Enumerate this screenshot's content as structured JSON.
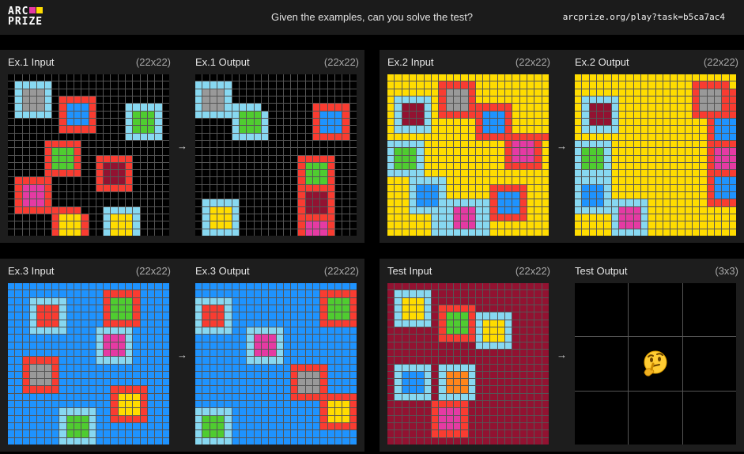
{
  "header": {
    "logo_line1": "ARC",
    "logo_line2": "PRIZE",
    "logo_colors": [
      "#e53aa3",
      "#ffdc00"
    ],
    "prompt": "Given the examples, can you solve the test?",
    "url": "arcprize.org/play?task=b5ca7ac4"
  },
  "palette": {
    "0": "#000000",
    "1": "#1e93ff",
    "2": "#f93c31",
    "3": "#4fcc30",
    "4": "#ffdc00",
    "5": "#999999",
    "6": "#e53aa3",
    "7": "#ff851b",
    "8": "#87d8f1",
    "9": "#921231"
  },
  "arrow_glyph": "→",
  "test_output_icon": "thinking-face-emoji",
  "pairs": [
    {
      "input_label": "Ex.1 Input",
      "input_size": "(22x22)",
      "output_label": "Ex.1 Output",
      "output_size": "(22x22)",
      "input_grid": [
        "0000000000000000000000",
        "0888880000000000000000",
        "0855580000000000000000",
        "0855580222220000000000",
        "0855580211120000888880",
        "0888880211120000833380",
        "0000000211120000833380",
        "0000000222220000833380",
        "0000000000000000888880",
        "0000022222000000000000",
        "0000023332000000000000",
        "0000023332002222200000",
        "0000023332002999200000",
        "0000022222002999200000",
        "0222220000002999200000",
        "0266620000002222200000",
        "0266620000000000000000",
        "0266620000000000000000",
        "0222222222000888880000",
        "0000002444200844480000",
        "0000002444200844480000",
        "0000002444200844480000"
      ],
      "output_grid": [
        "0000000000000000000000",
        "8888800000000000000000",
        "8555800000000000000000",
        "8555800000000000000000",
        "8555888880000000222220",
        "8888883338000000211120",
        "0000083338000000211120",
        "0000083338000000211120",
        "0000088888000000222220",
        "0000000000000000000000",
        "0000000000000000000000",
        "0000000000000022222000",
        "0000000000000023332000",
        "0000000000000023332000",
        "0000000000000023332000",
        "0000000000000022222000",
        "0000000000000029992000",
        "0888880000000029992000",
        "0844480000000029992000",
        "0844480000000022222000",
        "0844480000000026662000",
        "0888880000000026662000"
      ]
    },
    {
      "input_label": "Ex.2 Input",
      "input_size": "(22x22)",
      "output_label": "Ex.2 Output",
      "output_size": "(22x22)",
      "input_grid": [
        "4444444444444444444444",
        "4444444222224444444444",
        "4444444255524444444444",
        "4888884255524444444444",
        "4899984255522222244444",
        "4899984222222111244444",
        "4899984444442111244444",
        "4888884444442111244444",
        "4444444444442222222222",
        "8888844444444444266624",
        "8333844444444444266624",
        "8333844444444444266624",
        "8333844444444444222224",
        "8888844444444444444444",
        "4448888844444444444444",
        "4448111844444422222444",
        "4448111844444421112444",
        "4448111888888821112444",
        "4448888886668821112444",
        "4444448886668822222444",
        "4444448886668844444444",
        "4444448888888844444444"
      ],
      "output_grid": [
        "4444444444444444444444",
        "4444444444444444222224",
        "4444444444444444255522",
        "4888884444444444255522",
        "4899984444444444255522",
        "4899984444444444222222",
        "4899984444444444442111",
        "4888884444444444442111",
        "4444444444444444442111",
        "8888844444444444442222",
        "8333844444444444442666",
        "8333844444444444442666",
        "8333844444444444442666",
        "8888844444444444442222",
        "8888844444444444442111",
        "8111844444444444442111",
        "8111844444444444442111",
        "8111888888444444442222",
        "8888886668444444444444",
        "4444486668444444444444",
        "4444486668444444444444",
        "4444488888444444444444"
      ]
    },
    {
      "input_label": "Ex.3 Input",
      "input_size": "(22x22)",
      "output_label": "Ex.3 Output",
      "output_size": "(22x22)",
      "input_grid": [
        "1111111111111111111111",
        "1111111111111222221111",
        "1118888811111233321111",
        "1118222811111233321111",
        "1118222811111233321111",
        "1118222811111222221111",
        "1118888811118888811111",
        "1111111111118666811111",
        "1111111111118666811111",
        "1111111111118666811111",
        "1122222111118888811111",
        "1125552111111111111111",
        "1125552111111111111111",
        "1125552111111111111111",
        "1122222111111122222111",
        "1111111111111124442111",
        "1111111111111124442111",
        "1111111888881124442111",
        "1111111833381122222111",
        "1111111833381111111111",
        "1111111833381111111111",
        "1111111888881111111111"
      ],
      "output_grid": [
        "1111111111111111111111",
        "1111111111111111122222",
        "8888811111111111123332",
        "8222811111111111123332",
        "8222811111111111123332",
        "8222811111111111122222",
        "8888811888881111111111",
        "1111111866681111111111",
        "1111111866681111111111",
        "1111111866681111111111",
        "1111111888881111111111",
        "1111111111111222221111",
        "1111111111111255521111",
        "1111111111111255521111",
        "1111111111111255521111",
        "1111111111111222222222",
        "1111111111111111124442",
        "8888811111111111124442",
        "8333811111111111124442",
        "8333811111111111122222",
        "8333811111111111111111",
        "8888811111111111111111"
      ]
    },
    {
      "input_label": "Test Input",
      "input_size": "(22x22)",
      "output_label": "Test Output",
      "output_size": "(3x3)",
      "input_grid": [
        "9999999999999999999999",
        "9888889999999999999999",
        "9844489999999999999999",
        "9844489222229999999999",
        "9844489233328888899999",
        "9888889233328444899999",
        "9999999233328444899999",
        "9999999222228444899999",
        "9999999999998888899999",
        "9999999999999999999999",
        "9999999999999999999999",
        "9888889888889999999999",
        "9811189877789999999999",
        "9811189877789999999999",
        "9811189877789999999999",
        "9888889888889999999999",
        "9999992222299999999999",
        "9999992666299999999999",
        "9999992666299999999999",
        "9999992666299999999999",
        "9999992222299999999999",
        "9999999999999999999999"
      ],
      "output_grid": [
        "000",
        "000",
        "000"
      ]
    }
  ]
}
